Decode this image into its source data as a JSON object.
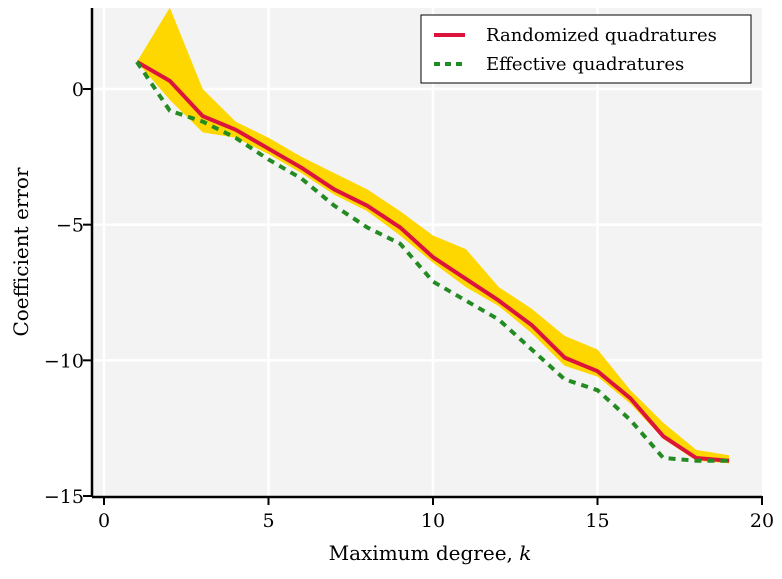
{
  "chart_data": {
    "type": "line",
    "title": "",
    "xlabel": "Maximum degree, ",
    "xlabel_var": "k",
    "ylabel": "Coefficient error",
    "xlim": [
      0,
      20
    ],
    "ylim": [
      -15,
      3
    ],
    "xticks": [
      0,
      5,
      10,
      15,
      20
    ],
    "yticks": [
      0,
      -5,
      -10,
      -15
    ],
    "ytick_labels": [
      "0",
      "−5",
      "−10",
      "−15"
    ],
    "grid": true,
    "legend_position": "top-right",
    "x": [
      1,
      2,
      3,
      4,
      5,
      6,
      7,
      8,
      9,
      10,
      11,
      12,
      13,
      14,
      15,
      16,
      17,
      18,
      19
    ],
    "series": [
      {
        "name": "Randomized quadratures",
        "style": "solid",
        "color": "#dc143c",
        "values": [
          1.0,
          0.3,
          -1.0,
          -1.5,
          -2.2,
          -2.9,
          -3.7,
          -4.3,
          -5.1,
          -6.2,
          -7.0,
          -7.8,
          -8.7,
          -9.9,
          -10.4,
          -11.4,
          -12.8,
          -13.6,
          -13.7
        ]
      },
      {
        "name": "Effective quadratures",
        "style": "dashed",
        "color": "#228b22",
        "values": [
          1.0,
          -0.8,
          -1.2,
          -1.8,
          -2.6,
          -3.3,
          -4.3,
          -5.1,
          -5.7,
          -7.1,
          -7.8,
          -8.5,
          -9.6,
          -10.7,
          -11.1,
          -12.2,
          -13.6,
          -13.7,
          -13.7
        ]
      }
    ],
    "band": {
      "name": "Randomized quadratures spread",
      "color": "#ffd700",
      "upper": [
        1.0,
        3.0,
        0.0,
        -1.2,
        -1.8,
        -2.5,
        -3.1,
        -3.7,
        -4.5,
        -5.4,
        -5.9,
        -7.3,
        -8.1,
        -9.1,
        -9.6,
        -11.1,
        -12.3,
        -13.3,
        -13.5
      ],
      "lower": [
        1.0,
        -0.4,
        -1.6,
        -1.8,
        -2.4,
        -3.1,
        -3.9,
        -4.5,
        -5.4,
        -6.4,
        -7.3,
        -8.0,
        -9.0,
        -10.2,
        -10.6,
        -11.6,
        -12.9,
        -13.7,
        -13.8
      ]
    }
  }
}
